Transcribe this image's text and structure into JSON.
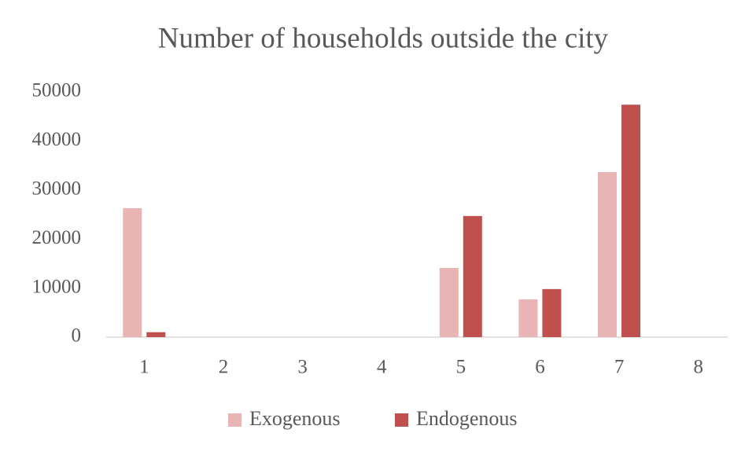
{
  "chart_data": {
    "type": "bar",
    "title": "Number of households outside the city",
    "categories": [
      "1",
      "2",
      "3",
      "4",
      "5",
      "6",
      "7",
      "8"
    ],
    "series": [
      {
        "name": "Exogenous",
        "color": "#e8b4b4",
        "values": [
          26300,
          0,
          0,
          0,
          14100,
          7700,
          33650,
          0
        ]
      },
      {
        "name": "Endogenous",
        "color": "#c0504d",
        "values": [
          1000,
          0,
          0,
          0,
          24700,
          9800,
          47400,
          0
        ]
      }
    ],
    "ylim": [
      0,
      50000
    ],
    "yticks": [
      0,
      10000,
      20000,
      30000,
      40000,
      50000
    ],
    "grid": false,
    "legend": "bottom"
  }
}
